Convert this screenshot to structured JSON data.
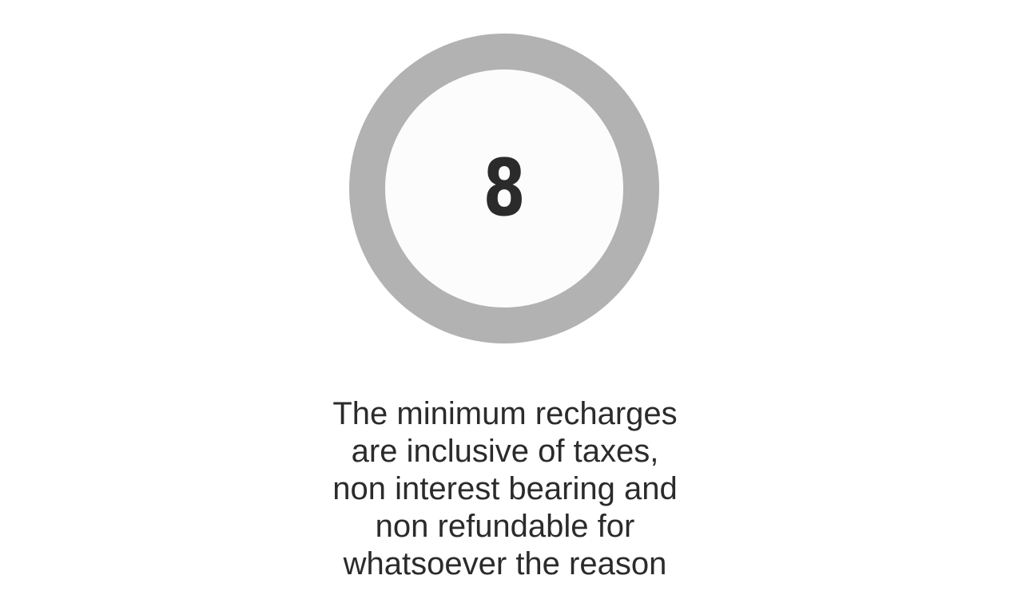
{
  "step": {
    "number": "8",
    "caption_lines": [
      "The minimum recharges",
      "are inclusive of taxes,",
      "non interest bearing and",
      "non refundable for",
      "whatsoever the reason"
    ]
  },
  "colors": {
    "ring": "#b1b2b1",
    "inner": "#fcfcfc",
    "text": "#2b2b2b"
  }
}
